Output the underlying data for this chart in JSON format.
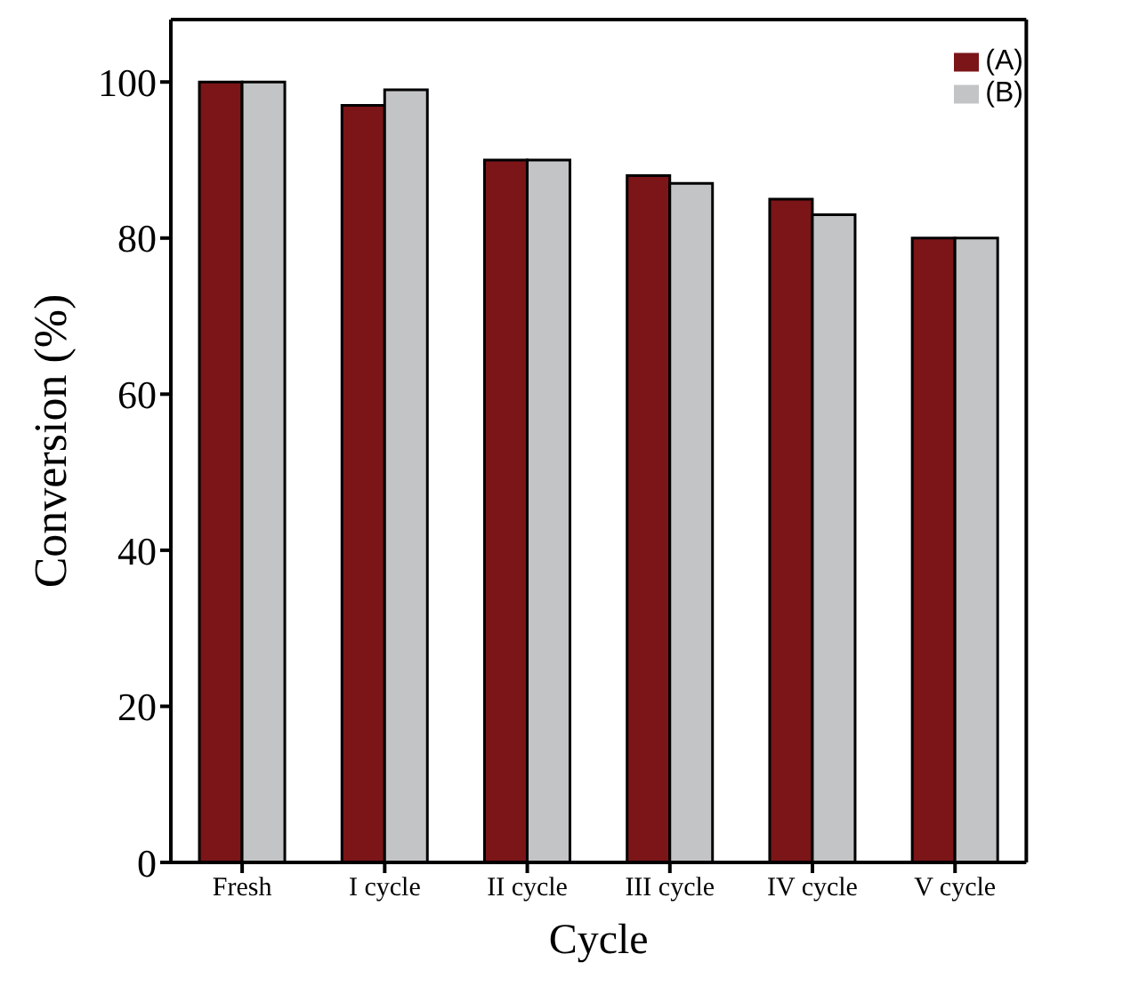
{
  "chart_data": {
    "type": "bar",
    "xlabel": "Cycle",
    "ylabel": "Conversion (%)",
    "categories": [
      "Fresh",
      "I cycle",
      "II cycle",
      "III cycle",
      "IV cycle",
      "V cycle"
    ],
    "series": [
      {
        "name": "(A)",
        "color": "#7b1518",
        "values": [
          100,
          97,
          90,
          88,
          85,
          80
        ]
      },
      {
        "name": "(B)",
        "color": "#c3c4c6",
        "values": [
          100,
          99,
          90,
          87,
          83,
          80
        ]
      }
    ],
    "ylim": [
      0,
      108
    ],
    "yticks": [
      0,
      20,
      40,
      60,
      80,
      100
    ],
    "grid": false,
    "legend": "top right"
  }
}
